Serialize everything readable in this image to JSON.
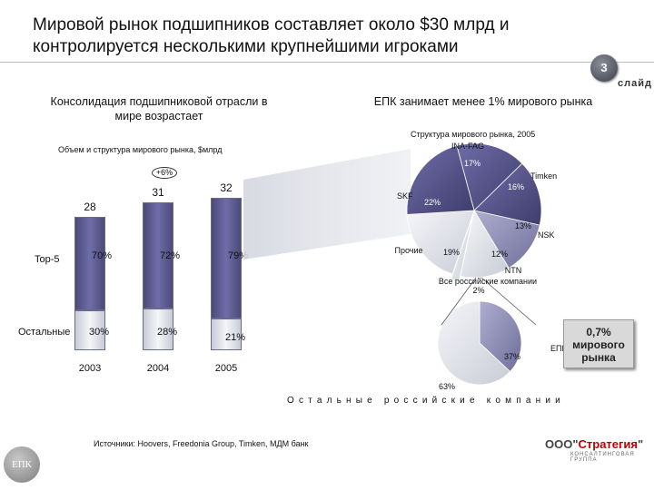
{
  "header": {
    "title_line1": "Мировой рынок подшипников составляет около $30 млрд и",
    "title_line2": "контролируется несколькими крупнейшими игроками",
    "slide_number": "3",
    "slide_word": "слайд"
  },
  "left_panel": {
    "heading_line1": "Консолидация подшипниковой отрасли в",
    "heading_line2": "мире возрастает",
    "chart_caption": "Объем и структура мирового рынка, $млрд",
    "growth_label": "+6%",
    "row_labels": {
      "top": "Top-5",
      "rest": "Остальные"
    }
  },
  "right_panel": {
    "heading": "ЕПК занимает менее 1% мирового рынка",
    "pie_caption": "Структура мирового рынка, 2005",
    "small_pie_caption": "Остальные российские компании",
    "callout_line1": "0,7%",
    "callout_line2": "мирового",
    "callout_line3": "рынка"
  },
  "source": "Источники: Hoovers, Freedonia Group, Timken, МДМ банк",
  "logos": {
    "bottom_left": "ЕПК",
    "bottom_right_prefix": "ООО\"",
    "bottom_right_brand": "Стратегия",
    "bottom_right_suffix": "\"",
    "bottom_right_sub": "КОНСАЛТИНГОВАЯ ГРУППА"
  },
  "colors": {
    "top5": "#5a5890",
    "rest": "#e6e8ee",
    "pie_dark": "#4f4d80",
    "pie_mid": "#8b8ab3",
    "pie_light": "#d8dbe4"
  },
  "chart_data": [
    {
      "type": "bar",
      "title": "Объем и структура мирового рынка, $млрд",
      "categories": [
        "2003",
        "2004",
        "2005"
      ],
      "totals": [
        28,
        31,
        32
      ],
      "series": [
        {
          "name": "Top-5",
          "values_pct": [
            70,
            72,
            79
          ]
        },
        {
          "name": "Остальные",
          "values_pct": [
            30,
            28,
            21
          ]
        }
      ],
      "total_labels": [
        "28",
        "31",
        "32"
      ],
      "top_labels": [
        "70%",
        "72%",
        "79%"
      ],
      "rest_labels": [
        "30%",
        "28%",
        "21%"
      ],
      "annotation": "+6%"
    },
    {
      "type": "pie",
      "title": "Структура мирового рынка, 2005",
      "slices": [
        {
          "name": "INA-FAG",
          "value": 17,
          "label": "17%"
        },
        {
          "name": "Timken",
          "value": 16,
          "label": "16%"
        },
        {
          "name": "NSK",
          "value": 13,
          "label": "13%"
        },
        {
          "name": "NTN",
          "value": 12,
          "label": "12%"
        },
        {
          "name": "Все российские компании",
          "value": 2,
          "label": "2%"
        },
        {
          "name": "Прочие",
          "value": 19,
          "label": "19%"
        },
        {
          "name": "SKF",
          "value": 22,
          "label": "22%"
        }
      ]
    },
    {
      "type": "pie",
      "title": "Остальные российские компании",
      "slices": [
        {
          "name": "ЕПК",
          "value": 37,
          "label": "37%"
        },
        {
          "name": "Остальные российские компании",
          "value": 63,
          "label": "63%"
        }
      ]
    }
  ]
}
